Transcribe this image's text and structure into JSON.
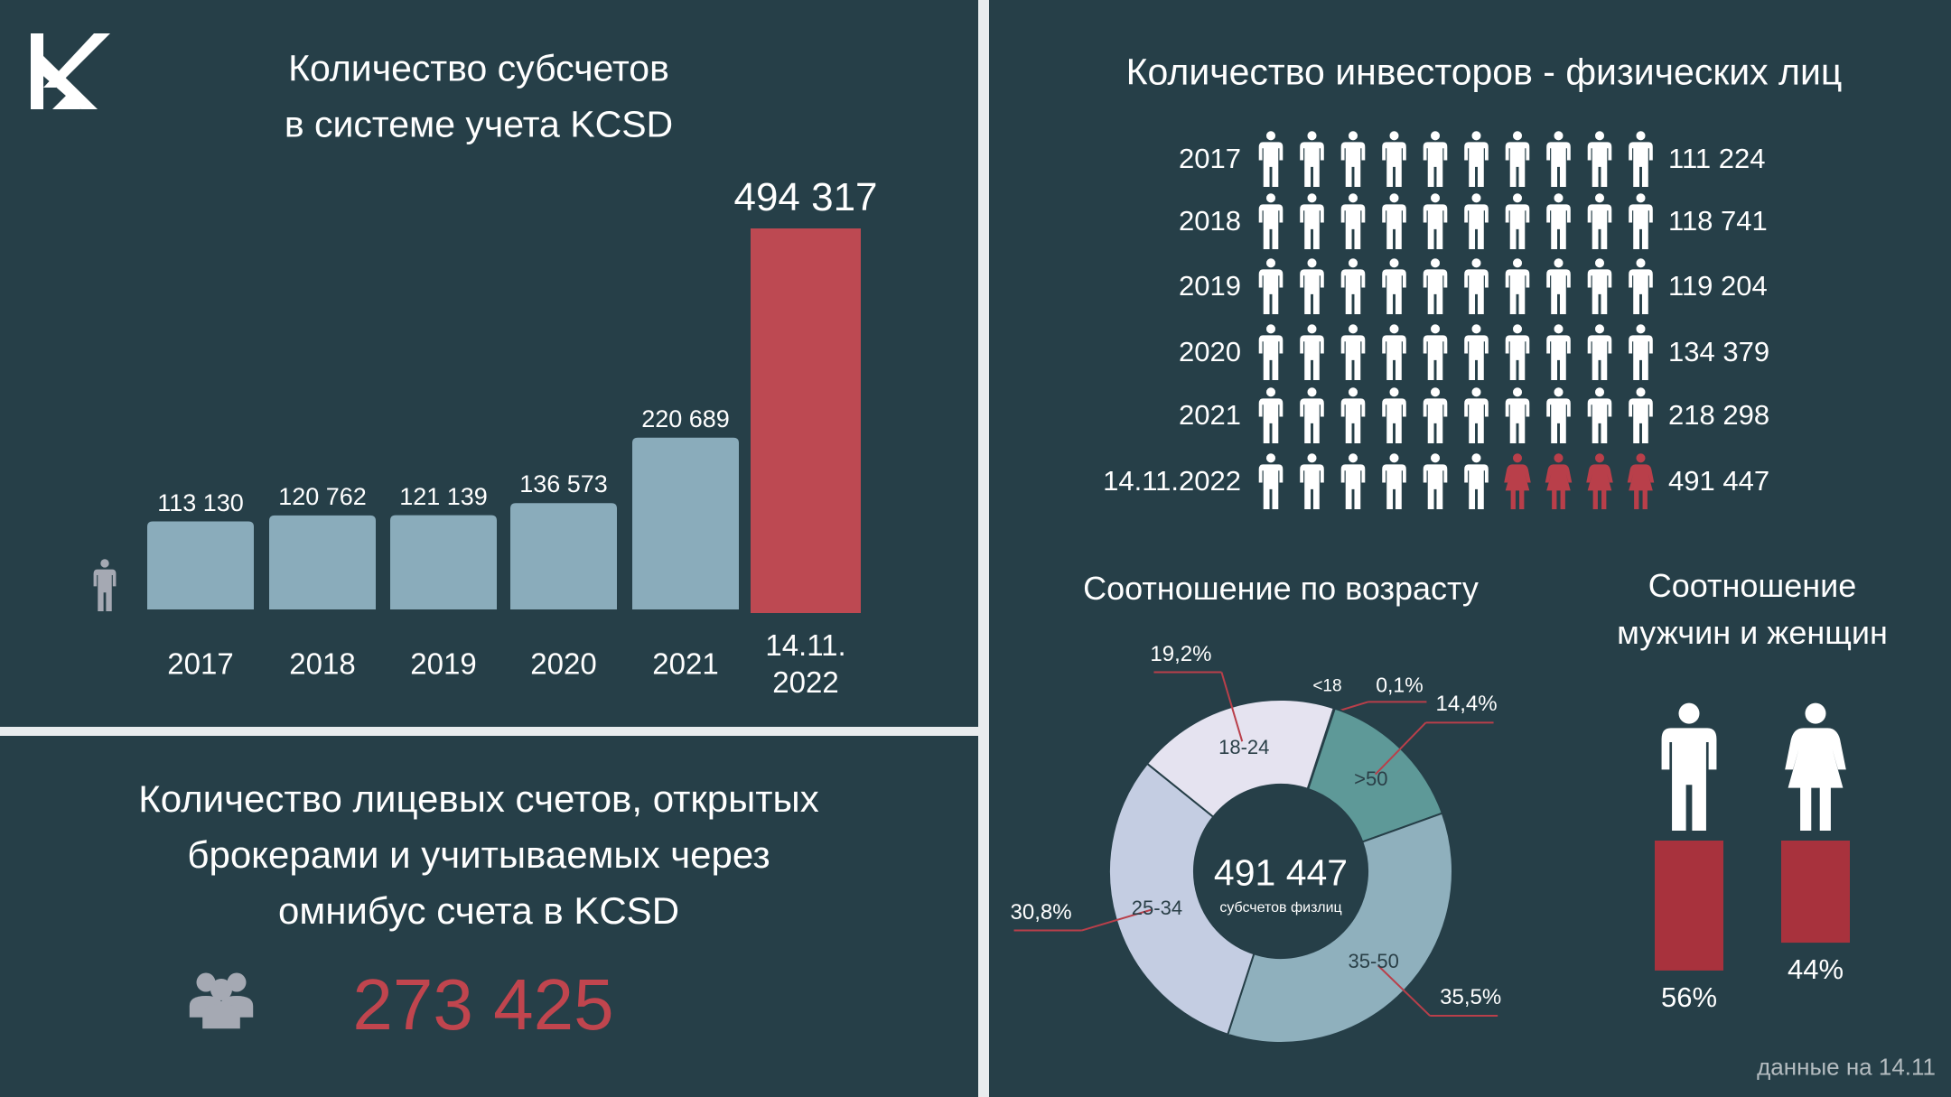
{
  "chart_data": [
    {
      "type": "bar",
      "title": [
        "Количество субсчетов",
        "в системе учета KCSD"
      ],
      "categories": [
        "2017",
        "2018",
        "2019",
        "2020",
        "2021",
        "14.11. 2022"
      ],
      "values": [
        113130,
        120762,
        121139,
        136573,
        220689,
        494317
      ],
      "value_labels": [
        "113 130",
        "120 762",
        "121 139",
        "136 573",
        "220 689",
        "494 317"
      ],
      "colors": [
        "#8aacbb",
        "#8aacbb",
        "#8aacbb",
        "#8aacbb",
        "#8aacbb",
        "#bd4952"
      ]
    },
    {
      "type": "pictogram",
      "title": [
        "Количество инвесторов - физических лиц"
      ],
      "categories": [
        "2017",
        "2018",
        "2019",
        "2020",
        "2021",
        "14.11.2022"
      ],
      "values": [
        111224,
        118741,
        119204,
        134379,
        218298,
        491447
      ],
      "value_labels": [
        "111 224",
        "118 741",
        "119 204",
        "134 379",
        "218 298",
        "491 447"
      ],
      "icon_color": "#ffffff",
      "highlight_color": "#b93f4a"
    },
    {
      "type": "donut",
      "title": [
        "Соотношение по возрасту"
      ],
      "categories": [
        "<18",
        ">50",
        "35-50",
        "25-34",
        "18-24"
      ],
      "values": [
        0.1,
        14.4,
        35.5,
        30.8,
        19.2
      ],
      "value_labels": [
        "0,1%",
        "14,4%",
        "35,5%",
        "30,8%",
        "19,2%"
      ],
      "colors": [
        "#f4f4f6",
        "#5e9998",
        "#8fb0bd",
        "#c4cde2",
        "#e5e3f0"
      ],
      "total": 491447,
      "total_label": "491 447",
      "total_caption": "субсчетов физлиц"
    },
    {
      "type": "gender-bar",
      "title": [
        "Соотношение",
        "мужчин и женщин"
      ],
      "categories": [
        null,
        null
      ],
      "values": [
        56,
        44
      ],
      "value_labels": [
        "56%",
        "44%"
      ],
      "color": "#a8323d"
    },
    {
      "type": "kpi",
      "title": [
        "Количество лицевых счетов, открытых",
        "брокерами и учитываемых через",
        "омнибус счета в KCSD"
      ],
      "value": 273425,
      "value_label": "273 425",
      "color": "#c0454e"
    }
  ],
  "footnote": "данные на 14.11"
}
